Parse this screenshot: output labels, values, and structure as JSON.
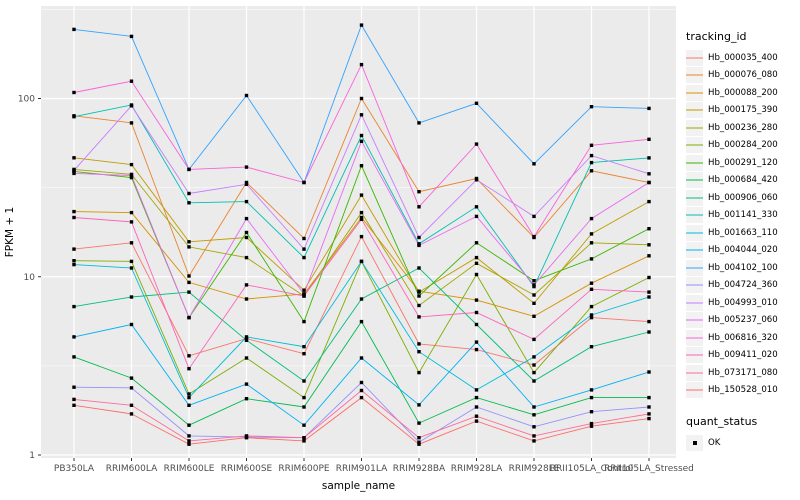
{
  "figure": {
    "background": "#FFFFFF",
    "panel_bg": "#EBEBEB",
    "grid_color": "#FFFFFF",
    "tick_color": "#333333",
    "tick_label_color": "#4D4D4D",
    "axis_title_color": "#000000",
    "legend_key_bg": "#F2F2F2",
    "point_color": "#000000"
  },
  "legend": {
    "color_title": "tracking_id",
    "shape_title": "quant_status",
    "shape_label": "OK"
  },
  "chart_data": {
    "type": "line",
    "xlabel": "sample_name",
    "ylabel": "FPKM + 1",
    "y_scale": "log10",
    "y_ticks": [
      1,
      10,
      100
    ],
    "y_tick_labels": [
      "1",
      "10",
      "100"
    ],
    "y_minor_ticks": [
      3.162,
      31.62,
      316.2
    ],
    "ylim": [
      1,
      320
    ],
    "grid": true,
    "legend_position": "right",
    "point_shape": "filled-square",
    "categories": [
      "PB350LA",
      "RRIM600LA",
      "RRIM600LE",
      "RRIM600SE",
      "RRIM600PE",
      "RRIM901LA",
      "RRIM928BA",
      "RRIM928LA",
      "RRIM928LE",
      "RRII105LA_Control",
      "RRII105LA_Stressed"
    ],
    "series": [
      {
        "name": "Hb_000035_400",
        "color": "#F8766D",
        "values": [
          14.3,
          15.5,
          3.6,
          4.5,
          3.7,
          16.8,
          4.2,
          3.9,
          3.2,
          5.9,
          5.6
        ]
      },
      {
        "name": "Hb_000076_080",
        "color": "#EA8331",
        "values": [
          80,
          73,
          10.1,
          33.8,
          16.4,
          100,
          30,
          35.6,
          16.6,
          39.3,
          33.8
        ]
      },
      {
        "name": "Hb_000088_200",
        "color": "#D89000",
        "values": [
          23.2,
          22.9,
          9.3,
          7.5,
          8.0,
          21.5,
          8.3,
          7.4,
          6.0,
          9.2,
          13.1
        ]
      },
      {
        "name": "Hb_000175_390",
        "color": "#C09B00",
        "values": [
          46.5,
          42.6,
          15.7,
          16.6,
          8.4,
          28.7,
          8.2,
          12.8,
          7.1,
          17.4,
          26.4
        ]
      },
      {
        "name": "Hb_000236_280",
        "color": "#A3A500",
        "values": [
          40,
          37.5,
          14.7,
          12.8,
          7.8,
          22.9,
          6.9,
          11.9,
          7.9,
          15.5,
          15.1
        ]
      },
      {
        "name": "Hb_000284_200",
        "color": "#7CAE00",
        "values": [
          12.3,
          12.2,
          2.2,
          3.5,
          2.1,
          12.2,
          2.9,
          10.3,
          2.9,
          6.8,
          9.9
        ]
      },
      {
        "name": "Hb_000291_120",
        "color": "#39B600",
        "values": [
          39,
          36,
          5.9,
          17.7,
          5.6,
          42,
          7.8,
          15.5,
          9.5,
          12.6,
          18.6
        ]
      },
      {
        "name": "Hb_000684_420",
        "color": "#00BB4E",
        "values": [
          3.55,
          2.7,
          1.47,
          2.07,
          1.86,
          5.6,
          1.51,
          2.1,
          1.68,
          2.1,
          2.1
        ]
      },
      {
        "name": "Hb_000906_060",
        "color": "#00BF7D",
        "values": [
          6.8,
          7.7,
          8.2,
          4.4,
          2.6,
          7.5,
          11.2,
          5.4,
          2.6,
          4.05,
          4.9
        ]
      },
      {
        "name": "Hb_001141_330",
        "color": "#00C0AF",
        "values": [
          79,
          92,
          26,
          26.4,
          12.8,
          62,
          15.3,
          24.7,
          8.8,
          43.7,
          46.4
        ]
      },
      {
        "name": "Hb_001663_110",
        "color": "#00BCD8",
        "values": [
          11.7,
          11.2,
          2.1,
          4.6,
          4.05,
          12.2,
          3.8,
          2.32,
          3.55,
          6.1,
          7.7
        ]
      },
      {
        "name": "Hb_004044_020",
        "color": "#00B0F6",
        "values": [
          4.6,
          5.4,
          1.9,
          2.5,
          1.47,
          3.5,
          1.91,
          4.3,
          1.86,
          2.32,
          2.92
        ]
      },
      {
        "name": "Hb_004102_100",
        "color": "#35A2FF",
        "values": [
          244,
          223,
          40,
          104,
          33.8,
          258,
          73,
          94,
          43,
          90,
          88
        ]
      },
      {
        "name": "Hb_004724_360",
        "color": "#9590FF",
        "values": [
          2.4,
          2.38,
          1.28,
          1.26,
          1.25,
          2.55,
          1.18,
          1.86,
          1.44,
          1.75,
          1.86
        ]
      },
      {
        "name": "Hb_004993_010",
        "color": "#C77CFF",
        "values": [
          39.5,
          91,
          29.3,
          33,
          14.3,
          81,
          16.6,
          35,
          21.8,
          47.8,
          37.8
        ]
      },
      {
        "name": "Hb_005237_060",
        "color": "#E76BF3",
        "values": [
          38,
          37,
          5.9,
          21.2,
          8.0,
          57.5,
          15.0,
          21.8,
          9.0,
          21.2,
          33.8
        ]
      },
      {
        "name": "Hb_006816_320",
        "color": "#FA62DB",
        "values": [
          108,
          125,
          40,
          41.2,
          33.8,
          155,
          24.7,
          55.5,
          16.8,
          54.6,
          59
        ]
      },
      {
        "name": "Hb_009411_020",
        "color": "#FF62BC",
        "values": [
          21.5,
          20.3,
          3.05,
          9.0,
          7.8,
          21,
          5.95,
          6.3,
          4.45,
          8.5,
          8.2
        ]
      },
      {
        "name": "Hb_073171_080",
        "color": "#FF6A98",
        "values": [
          2.05,
          1.9,
          1.2,
          1.28,
          1.25,
          2.3,
          1.25,
          1.65,
          1.28,
          1.5,
          1.7
        ]
      },
      {
        "name": "Hb_150528_010",
        "color": "#FF6C67",
        "values": [
          1.9,
          1.7,
          1.15,
          1.25,
          1.2,
          2.1,
          1.15,
          1.55,
          1.2,
          1.45,
          1.6
        ]
      }
    ]
  }
}
